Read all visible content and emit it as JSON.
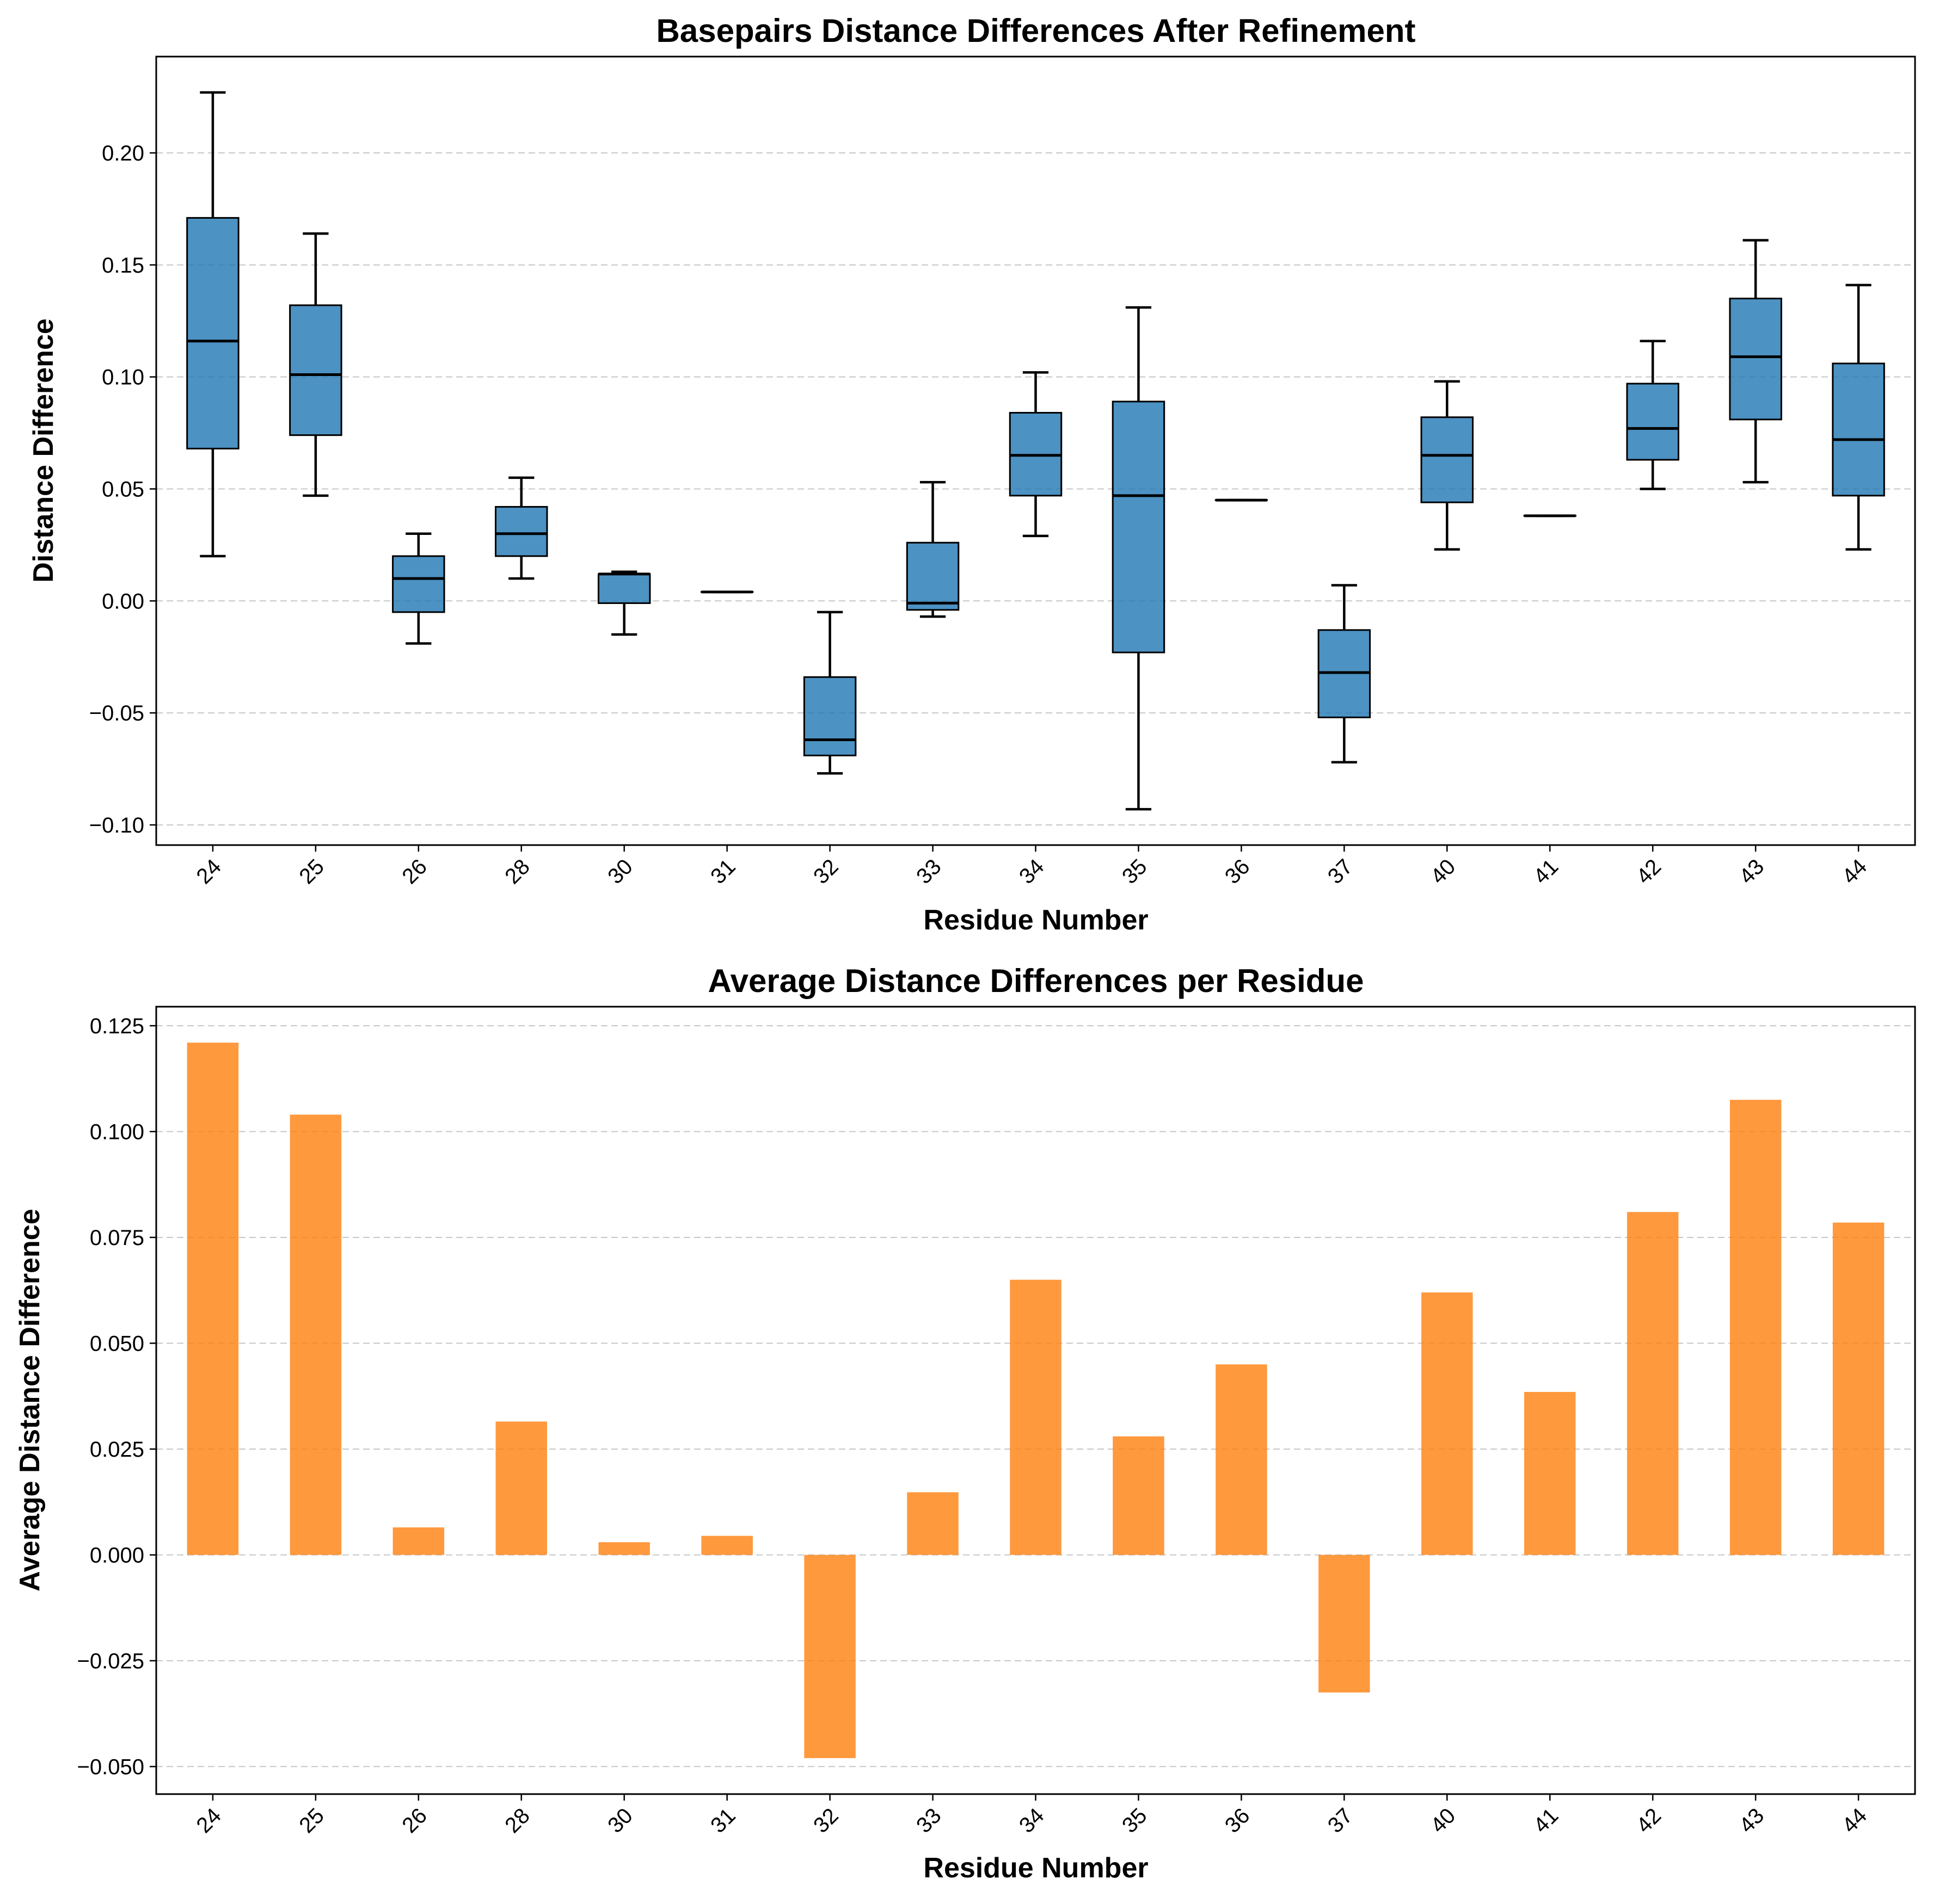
{
  "chart_data": [
    {
      "type": "box",
      "title": "Basepairs Distance Differences After Refinement",
      "xlabel": "Residue Number",
      "ylabel": "Distance Difference",
      "ylim": [
        -0.109,
        0.243
      ],
      "yticks": [
        -0.1,
        -0.05,
        0.0,
        0.05,
        0.1,
        0.15,
        0.2
      ],
      "ytick_labels": [
        "−0.10",
        "−0.05",
        "0.00",
        "0.05",
        "0.10",
        "0.15",
        "0.20"
      ],
      "grid": "y dashed",
      "color": "#1f77b4",
      "categories": [
        "24",
        "25",
        "26",
        "28",
        "30",
        "31",
        "32",
        "33",
        "34",
        "35",
        "36",
        "37",
        "40",
        "41",
        "42",
        "43",
        "44"
      ],
      "boxes": [
        {
          "whislo": 0.02,
          "q1": 0.068,
          "med": 0.116,
          "q3": 0.171,
          "whishi": 0.227
        },
        {
          "whislo": 0.047,
          "q1": 0.074,
          "med": 0.101,
          "q3": 0.132,
          "whishi": 0.164
        },
        {
          "whislo": -0.019,
          "q1": -0.005,
          "med": 0.01,
          "q3": 0.02,
          "whishi": 0.03
        },
        {
          "whislo": 0.01,
          "q1": 0.02,
          "med": 0.03,
          "q3": 0.042,
          "whishi": 0.055
        },
        {
          "whislo": -0.015,
          "q1": -0.001,
          "med": 0.012,
          "q3": 0.012,
          "whishi": 0.013
        },
        {
          "whislo": 0.004,
          "q1": 0.004,
          "med": 0.004,
          "q3": 0.004,
          "whishi": 0.004
        },
        {
          "whislo": -0.077,
          "q1": -0.069,
          "med": -0.062,
          "q3": -0.034,
          "whishi": -0.005
        },
        {
          "whislo": -0.007,
          "q1": -0.004,
          "med": -0.001,
          "q3": 0.026,
          "whishi": 0.053
        },
        {
          "whislo": 0.029,
          "q1": 0.047,
          "med": 0.065,
          "q3": 0.084,
          "whishi": 0.102
        },
        {
          "whislo": -0.093,
          "q1": -0.023,
          "med": 0.047,
          "q3": 0.089,
          "whishi": 0.131
        },
        {
          "whislo": 0.045,
          "q1": 0.045,
          "med": 0.045,
          "q3": 0.045,
          "whishi": 0.045
        },
        {
          "whislo": -0.072,
          "q1": -0.052,
          "med": -0.032,
          "q3": -0.013,
          "whishi": 0.007
        },
        {
          "whislo": 0.023,
          "q1": 0.044,
          "med": 0.065,
          "q3": 0.082,
          "whishi": 0.098
        },
        {
          "whislo": 0.038,
          "q1": 0.038,
          "med": 0.038,
          "q3": 0.038,
          "whishi": 0.038
        },
        {
          "whislo": 0.05,
          "q1": 0.063,
          "med": 0.077,
          "q3": 0.097,
          "whishi": 0.116
        },
        {
          "whislo": 0.053,
          "q1": 0.081,
          "med": 0.109,
          "q3": 0.135,
          "whishi": 0.161
        },
        {
          "whislo": 0.023,
          "q1": 0.047,
          "med": 0.072,
          "q3": 0.106,
          "whishi": 0.141
        }
      ]
    },
    {
      "type": "bar",
      "title": "Average Distance Differences per Residue",
      "xlabel": "Residue Number",
      "ylabel": "Average Distance Difference",
      "ylim": [
        -0.0565,
        0.1295
      ],
      "yticks": [
        -0.05,
        -0.025,
        0.0,
        0.025,
        0.05,
        0.075,
        0.1,
        0.125
      ],
      "ytick_labels": [
        "−0.050",
        "−0.025",
        "0.000",
        "0.025",
        "0.050",
        "0.075",
        "0.100",
        "0.125"
      ],
      "grid": "y dashed",
      "color": "#ff7f0e",
      "categories": [
        "24",
        "25",
        "26",
        "28",
        "30",
        "31",
        "32",
        "33",
        "34",
        "35",
        "36",
        "37",
        "40",
        "41",
        "42",
        "43",
        "44"
      ],
      "values": [
        0.121,
        0.104,
        0.0065,
        0.0315,
        0.003,
        0.0045,
        -0.048,
        0.0148,
        0.065,
        0.028,
        0.045,
        -0.0325,
        0.062,
        0.0385,
        0.081,
        0.1075,
        0.0785
      ]
    }
  ]
}
